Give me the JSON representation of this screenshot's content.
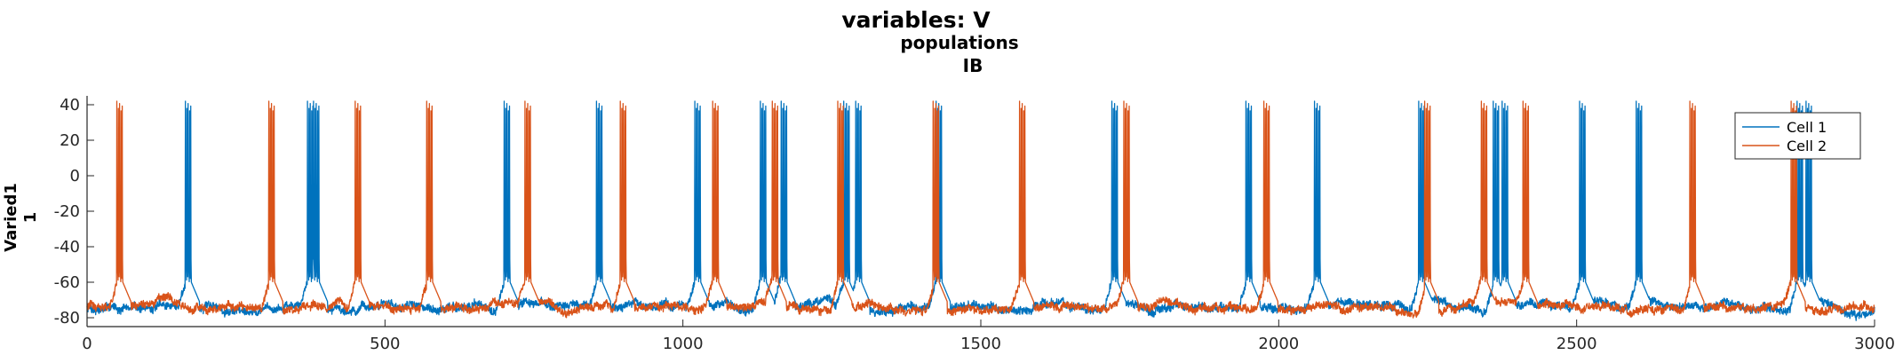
{
  "chart_data": {
    "type": "line",
    "title": "variables: V",
    "subtitle_lines": [
      "populations",
      "IB"
    ],
    "ylabel_lines": [
      "Varied1",
      "1"
    ],
    "xlabel": "",
    "xlim": [
      0,
      3000
    ],
    "ylim": [
      -85,
      45
    ],
    "x_ticks": [
      0,
      500,
      1000,
      1500,
      2000,
      2500,
      3000
    ],
    "y_ticks": [
      -80,
      -60,
      -40,
      -20,
      0,
      20,
      40
    ],
    "grid": false,
    "legend_position": "top-right",
    "resting_potential": -74,
    "spike_peak": 42,
    "series": [
      {
        "name": "Cell 1",
        "color": "#0072BD",
        "burst_times": [
          165,
          370,
          380,
          700,
          855,
          1020,
          1130,
          1165,
          1270,
          1290,
          1425,
          1720,
          1945,
          2060,
          2235,
          2360,
          2375,
          2505,
          2600,
          2870,
          2885
        ]
      },
      {
        "name": "Cell 2",
        "color": "#D95319",
        "burst_times": [
          50,
          305,
          450,
          570,
          735,
          895,
          1050,
          1150,
          1260,
          1420,
          1565,
          1740,
          1975,
          2245,
          2340,
          2410,
          2690,
          2860
        ]
      }
    ]
  }
}
